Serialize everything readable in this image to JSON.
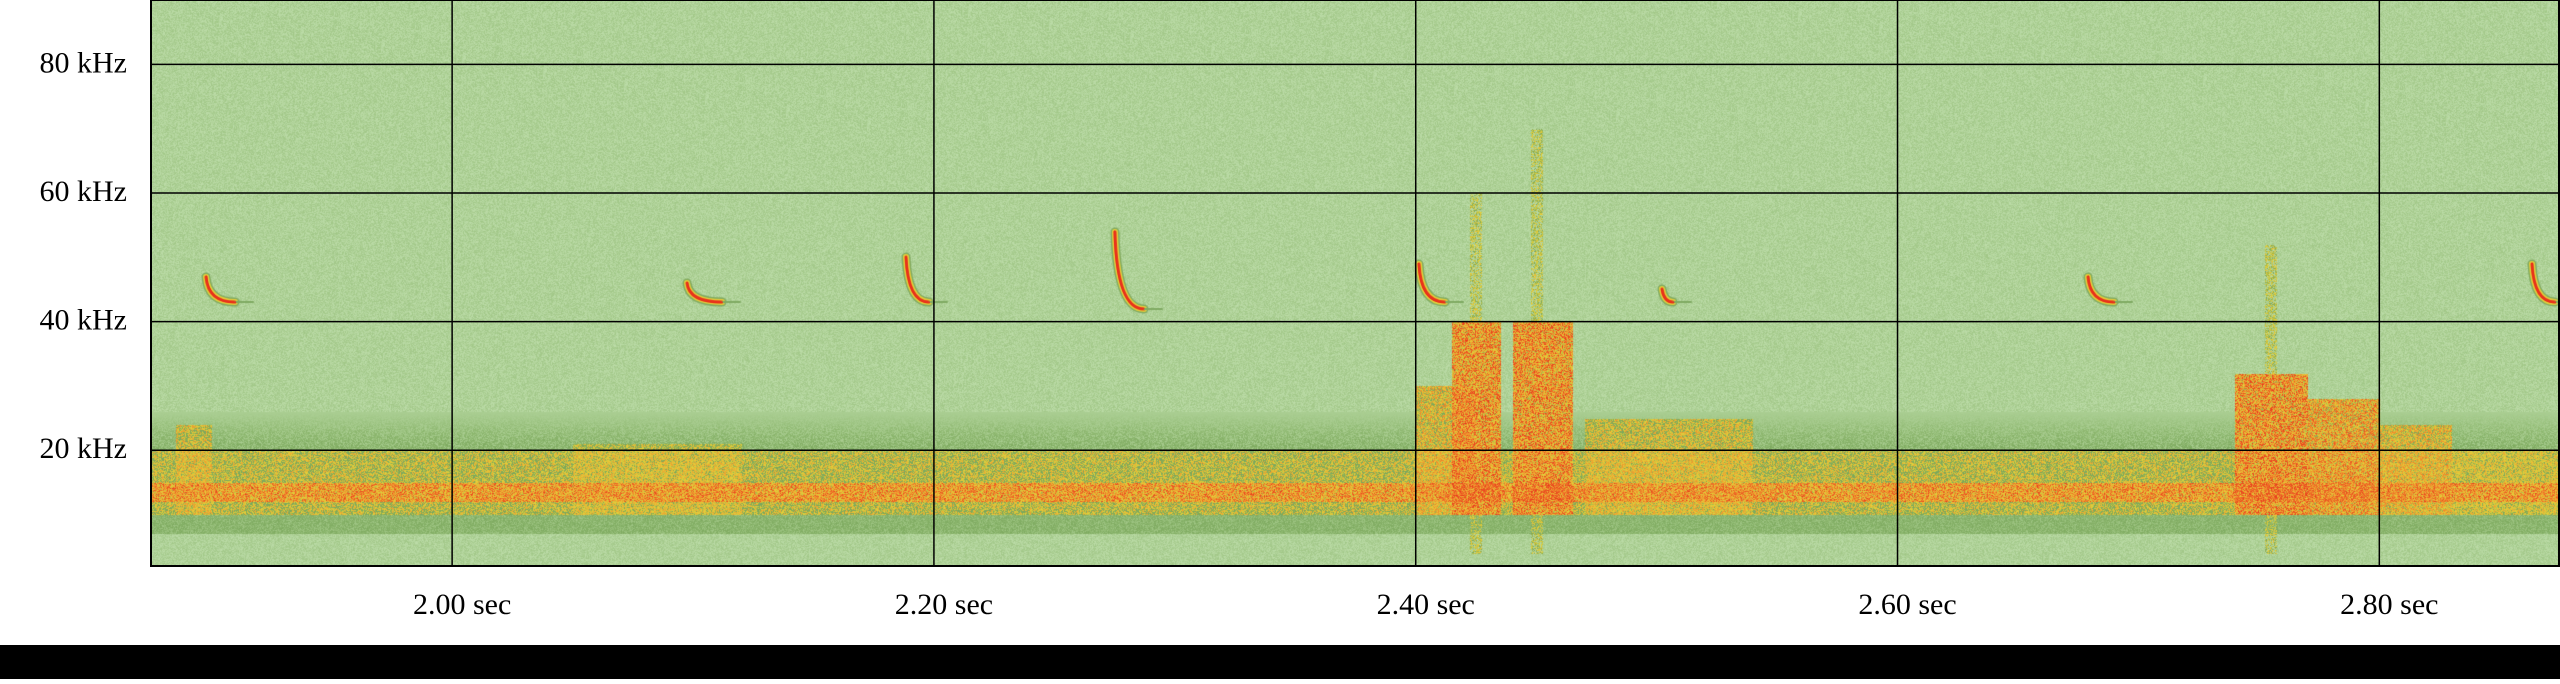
{
  "chart_data": {
    "type": "heatmap",
    "subtype": "spectrogram",
    "title": "",
    "xlabel": "",
    "ylabel": "",
    "x_unit": "sec",
    "y_unit": "kHz",
    "xlim": [
      1.875,
      2.875
    ],
    "ylim": [
      2,
      90
    ],
    "x_ticks": [
      {
        "value": 2.0,
        "label": "2.00 sec"
      },
      {
        "value": 2.2,
        "label": "2.20 sec"
      },
      {
        "value": 2.4,
        "label": "2.40 sec"
      },
      {
        "value": 2.6,
        "label": "2.60 sec"
      },
      {
        "value": 2.8,
        "label": "2.80 sec"
      }
    ],
    "y_ticks": [
      {
        "value": 20,
        "label": "20 kHz"
      },
      {
        "value": 40,
        "label": "40 kHz"
      },
      {
        "value": 60,
        "label": "60 kHz"
      },
      {
        "value": 80,
        "label": "80 kHz"
      }
    ],
    "grid": true,
    "colors": {
      "background": "#c6e4b4",
      "low": "#7faa62",
      "mid": "#e4d23a",
      "high": "#f08a2c",
      "peak": "#e8341c",
      "grid": "#000000"
    },
    "noise_band_khz": [
      10,
      20
    ],
    "hot_rows_khz": [
      12,
      15
    ],
    "bursts": [
      {
        "t0": 1.885,
        "t1": 1.9,
        "f1": 24,
        "level": 0.8
      },
      {
        "t0": 2.05,
        "t1": 2.12,
        "f1": 21,
        "level": 0.75
      },
      {
        "t0": 2.4,
        "t1": 2.425,
        "f1": 30,
        "level": 0.85
      },
      {
        "t0": 2.415,
        "t1": 2.435,
        "f1": 40,
        "level": 1.0
      },
      {
        "t0": 2.44,
        "t1": 2.465,
        "f1": 40,
        "level": 1.0
      },
      {
        "t0": 2.47,
        "t1": 2.54,
        "f1": 25,
        "level": 0.8
      },
      {
        "t0": 2.74,
        "t1": 2.77,
        "f1": 32,
        "level": 1.0
      },
      {
        "t0": 2.77,
        "t1": 2.8,
        "f1": 28,
        "level": 0.95
      },
      {
        "t0": 2.8,
        "t1": 2.83,
        "f1": 24,
        "level": 0.85
      },
      {
        "t0": 2.83,
        "t1": 2.875,
        "f1": 20,
        "level": 0.7
      }
    ],
    "streaks": [
      {
        "t": 2.425,
        "f0": 4,
        "f1": 60
      },
      {
        "t": 2.45,
        "f0": 4,
        "f1": 70
      },
      {
        "t": 2.755,
        "f0": 4,
        "f1": 52
      }
    ],
    "calls": [
      {
        "t": 1.9,
        "f_start": 47,
        "f_end": 43,
        "dur": 0.01
      },
      {
        "t": 2.1,
        "f_start": 46,
        "f_end": 43,
        "dur": 0.012
      },
      {
        "t": 2.19,
        "f_start": 50,
        "f_end": 43,
        "dur": 0.008
      },
      {
        "t": 2.277,
        "f_start": 54,
        "f_end": 42,
        "dur": 0.01
      },
      {
        "t": 2.403,
        "f_start": 49,
        "f_end": 43,
        "dur": 0.009
      },
      {
        "t": 2.503,
        "f_start": 45,
        "f_end": 43,
        "dur": 0.004
      },
      {
        "t": 2.681,
        "f_start": 47,
        "f_end": 43,
        "dur": 0.009
      },
      {
        "t": 2.865,
        "f_start": 49,
        "f_end": 43,
        "dur": 0.008
      }
    ]
  }
}
